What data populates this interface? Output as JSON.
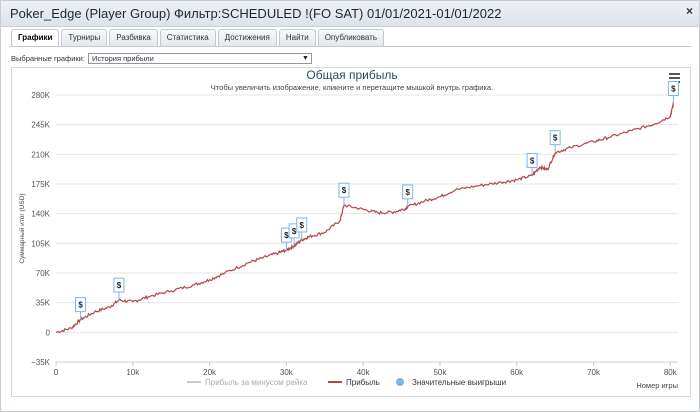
{
  "window": {
    "title": "Poker_Edge (Player Group) Фильтр:SCHEDULED !(FO SAT) 01/01/2021-01/01/2022",
    "close_label": "×"
  },
  "tabs": [
    {
      "label": "Графики",
      "active": true
    },
    {
      "label": "Турниры",
      "active": false
    },
    {
      "label": "Разбивка",
      "active": false
    },
    {
      "label": "Статистика",
      "active": false
    },
    {
      "label": "Достижения",
      "active": false
    },
    {
      "label": "Найти",
      "active": false
    },
    {
      "label": "Опубликовать",
      "active": false
    }
  ],
  "selector": {
    "label": "Выбранные графики:",
    "value": "История прибыли"
  },
  "chart": {
    "menu_icon": "hamburger-icon",
    "colors": {
      "profit": "#b5474b",
      "rake_series": "#c9c9c9",
      "big_win_marker": "#7cb5ec",
      "grid": "#e6e6e6",
      "title": "#274b6d"
    }
  },
  "chart_data": {
    "type": "line",
    "title": "Общая прибыль",
    "subtitle": "Чтобы увеличить изображение, кликните и перетащите мышкой внутрь графика.",
    "xlabel": "Номер игры",
    "ylabel": "Суммарный итог (USD)",
    "xlim": [
      0,
      81000
    ],
    "ylim": [
      -35000,
      280000
    ],
    "x_ticks": [
      0,
      10000,
      20000,
      30000,
      40000,
      50000,
      60000,
      70000,
      80000
    ],
    "x_tick_labels": [
      "0",
      "10k",
      "20k",
      "30k",
      "40k",
      "50k",
      "60k",
      "70k",
      "80k"
    ],
    "y_ticks": [
      -35000,
      0,
      35000,
      70000,
      105000,
      140000,
      175000,
      210000,
      245000,
      280000
    ],
    "y_tick_labels": [
      "−35K",
      "0",
      "35K",
      "70K",
      "105K",
      "140K",
      "175K",
      "210K",
      "245K",
      "280K"
    ],
    "grid": "horizontal",
    "legend_position": "bottom-center",
    "legend": [
      {
        "label": "Прибыль за минусом рейка",
        "color": "#c9c9c9",
        "kind": "line"
      },
      {
        "label": "Прибыль",
        "color": "#b5474b",
        "kind": "line"
      },
      {
        "label": "Значительные выигрыши",
        "color": "#7cb5ec",
        "kind": "marker"
      }
    ],
    "series": [
      {
        "name": "Прибыль",
        "points": [
          [
            0,
            0
          ],
          [
            2000,
            5000
          ],
          [
            3200,
            15000
          ],
          [
            5000,
            24000
          ],
          [
            7000,
            30000
          ],
          [
            8200,
            38000
          ],
          [
            10000,
            36000
          ],
          [
            12000,
            42000
          ],
          [
            15000,
            49000
          ],
          [
            18000,
            56000
          ],
          [
            20000,
            62000
          ],
          [
            22000,
            70000
          ],
          [
            25000,
            82000
          ],
          [
            27000,
            88000
          ],
          [
            29000,
            94000
          ],
          [
            30000,
            97000
          ],
          [
            31000,
            102000
          ],
          [
            32000,
            109000
          ],
          [
            33000,
            113000
          ],
          [
            35000,
            118000
          ],
          [
            37000,
            132000
          ],
          [
            37500,
            150000
          ],
          [
            40000,
            145000
          ],
          [
            42000,
            141000
          ],
          [
            44000,
            142000
          ],
          [
            45500,
            146000
          ],
          [
            45800,
            148000
          ],
          [
            48000,
            155000
          ],
          [
            50000,
            160000
          ],
          [
            52000,
            168000
          ],
          [
            55000,
            173000
          ],
          [
            58000,
            177000
          ],
          [
            60000,
            180000
          ],
          [
            62000,
            185000
          ],
          [
            63000,
            195000
          ],
          [
            64000,
            192000
          ],
          [
            65000,
            212000
          ],
          [
            67000,
            218000
          ],
          [
            70000,
            225000
          ],
          [
            72000,
            230000
          ],
          [
            75000,
            238000
          ],
          [
            78000,
            246000
          ],
          [
            80000,
            255000
          ],
          [
            80400,
            270000
          ]
        ]
      }
    ],
    "big_wins": [
      {
        "x": 3200,
        "y": 15000,
        "label": "$"
      },
      {
        "x": 8200,
        "y": 38000,
        "label": "$"
      },
      {
        "x": 30000,
        "y": 97000,
        "label": "$"
      },
      {
        "x": 31000,
        "y": 102000,
        "label": "$"
      },
      {
        "x": 32000,
        "y": 109000,
        "label": "$"
      },
      {
        "x": 37500,
        "y": 150000,
        "label": "$"
      },
      {
        "x": 45800,
        "y": 148000,
        "label": "$"
      },
      {
        "x": 62000,
        "y": 185000,
        "label": "$"
      },
      {
        "x": 65000,
        "y": 212000,
        "label": "$"
      },
      {
        "x": 80400,
        "y": 270000,
        "label": "$"
      }
    ]
  }
}
